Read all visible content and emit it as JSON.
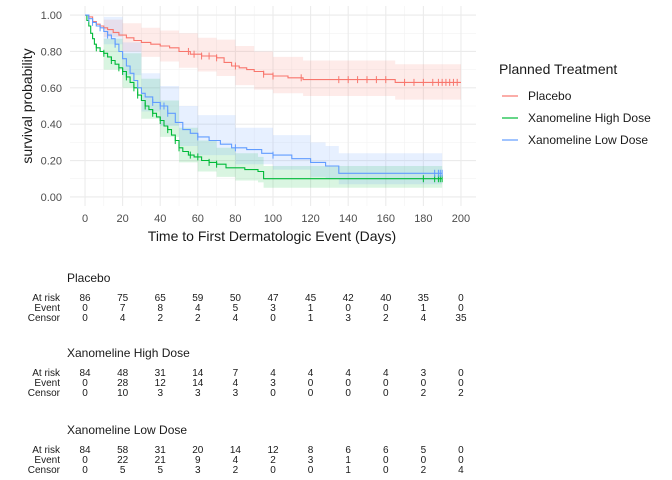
{
  "chart_data": {
    "type": "line",
    "title": "",
    "xlabel": "Time to First Dermatologic Event (Days)",
    "ylabel": "survival probability",
    "xlim": [
      -8,
      208
    ],
    "ylim": [
      -0.05,
      1.05
    ],
    "xticks": [
      0,
      20,
      40,
      60,
      80,
      100,
      120,
      140,
      160,
      180,
      200
    ],
    "yticks": [
      0.0,
      0.2,
      0.4,
      0.6,
      0.8,
      1.0
    ],
    "ytick_labels": [
      "0.00",
      "0.20",
      "0.40",
      "0.60",
      "0.80",
      "1.00"
    ],
    "grid": true,
    "legend": {
      "title": "Planned Treatment",
      "position": "right"
    },
    "series": [
      {
        "name": "Placebo",
        "color": "#F8766D",
        "steps": [
          [
            0,
            1.0
          ],
          [
            2,
            0.99
          ],
          [
            4,
            0.965
          ],
          [
            6,
            0.95
          ],
          [
            8,
            0.94
          ],
          [
            10,
            0.93
          ],
          [
            12,
            0.92
          ],
          [
            15,
            0.905
          ],
          [
            18,
            0.89
          ],
          [
            22,
            0.875
          ],
          [
            26,
            0.86
          ],
          [
            30,
            0.85
          ],
          [
            35,
            0.84
          ],
          [
            40,
            0.83
          ],
          [
            45,
            0.82
          ],
          [
            50,
            0.8
          ],
          [
            56,
            0.785
          ],
          [
            62,
            0.775
          ],
          [
            70,
            0.765
          ],
          [
            74,
            0.74
          ],
          [
            78,
            0.72
          ],
          [
            82,
            0.71
          ],
          [
            86,
            0.7
          ],
          [
            90,
            0.69
          ],
          [
            95,
            0.675
          ],
          [
            100,
            0.665
          ],
          [
            108,
            0.655
          ],
          [
            116,
            0.645
          ],
          [
            130,
            0.645
          ],
          [
            155,
            0.645
          ],
          [
            160,
            0.645
          ],
          [
            165,
            0.63
          ],
          [
            200,
            0.63
          ]
        ],
        "ci_upper": [
          [
            0,
            1.0
          ],
          [
            10,
            0.975
          ],
          [
            20,
            0.955
          ],
          [
            30,
            0.93
          ],
          [
            40,
            0.915
          ],
          [
            50,
            0.9
          ],
          [
            60,
            0.875
          ],
          [
            70,
            0.865
          ],
          [
            80,
            0.83
          ],
          [
            90,
            0.8
          ],
          [
            100,
            0.77
          ],
          [
            116,
            0.75
          ],
          [
            165,
            0.73
          ],
          [
            200,
            0.73
          ]
        ],
        "ci_lower": [
          [
            0,
            1.0
          ],
          [
            10,
            0.88
          ],
          [
            20,
            0.8
          ],
          [
            30,
            0.77
          ],
          [
            40,
            0.745
          ],
          [
            50,
            0.71
          ],
          [
            60,
            0.69
          ],
          [
            70,
            0.665
          ],
          [
            80,
            0.615
          ],
          [
            90,
            0.59
          ],
          [
            100,
            0.57
          ],
          [
            116,
            0.555
          ],
          [
            165,
            0.535
          ],
          [
            200,
            0.535
          ]
        ],
        "censor_times": [
          55,
          58,
          62,
          66,
          70,
          80,
          95,
          100,
          115,
          135,
          140,
          145,
          150,
          155,
          160,
          170,
          175,
          180,
          185,
          188,
          190,
          192,
          194,
          196,
          198
        ]
      },
      {
        "name": "Xanomeline High Dose",
        "color": "#00BA38",
        "steps": [
          [
            0,
            1.0
          ],
          [
            1,
            0.97
          ],
          [
            2,
            0.94
          ],
          [
            3,
            0.9
          ],
          [
            4,
            0.87
          ],
          [
            5,
            0.84
          ],
          [
            6,
            0.82
          ],
          [
            8,
            0.8
          ],
          [
            10,
            0.79
          ],
          [
            12,
            0.77
          ],
          [
            14,
            0.75
          ],
          [
            16,
            0.73
          ],
          [
            18,
            0.71
          ],
          [
            20,
            0.69
          ],
          [
            22,
            0.66
          ],
          [
            24,
            0.63
          ],
          [
            26,
            0.6
          ],
          [
            28,
            0.56
          ],
          [
            30,
            0.53
          ],
          [
            32,
            0.5
          ],
          [
            34,
            0.48
          ],
          [
            36,
            0.46
          ],
          [
            38,
            0.44
          ],
          [
            40,
            0.42
          ],
          [
            42,
            0.39
          ],
          [
            44,
            0.37
          ],
          [
            46,
            0.34
          ],
          [
            48,
            0.31
          ],
          [
            50,
            0.27
          ],
          [
            52,
            0.25
          ],
          [
            55,
            0.23
          ],
          [
            58,
            0.22
          ],
          [
            62,
            0.2
          ],
          [
            66,
            0.19
          ],
          [
            70,
            0.18
          ],
          [
            75,
            0.16
          ],
          [
            85,
            0.15
          ],
          [
            92,
            0.14
          ],
          [
            95,
            0.1
          ],
          [
            190,
            0.1
          ]
        ],
        "ci_upper": [
          [
            0,
            1.0
          ],
          [
            10,
            0.87
          ],
          [
            20,
            0.79
          ],
          [
            30,
            0.65
          ],
          [
            40,
            0.53
          ],
          [
            50,
            0.38
          ],
          [
            60,
            0.31
          ],
          [
            70,
            0.27
          ],
          [
            80,
            0.24
          ],
          [
            92,
            0.22
          ],
          [
            95,
            0.17
          ],
          [
            190,
            0.17
          ]
        ],
        "ci_lower": [
          [
            0,
            1.0
          ],
          [
            10,
            0.7
          ],
          [
            20,
            0.6
          ],
          [
            30,
            0.43
          ],
          [
            40,
            0.33
          ],
          [
            50,
            0.19
          ],
          [
            60,
            0.14
          ],
          [
            70,
            0.11
          ],
          [
            80,
            0.09
          ],
          [
            92,
            0.08
          ],
          [
            95,
            0.05
          ],
          [
            190,
            0.05
          ]
        ],
        "censor_times": [
          6,
          10,
          14,
          18,
          20,
          22,
          26,
          28,
          32,
          36,
          40,
          44,
          48,
          50,
          56,
          60,
          66,
          70,
          180,
          186,
          188,
          189,
          190
        ]
      },
      {
        "name": "Xanomeline Low Dose",
        "color": "#619CFF",
        "steps": [
          [
            0,
            1.0
          ],
          [
            2,
            0.98
          ],
          [
            4,
            0.96
          ],
          [
            6,
            0.94
          ],
          [
            8,
            0.93
          ],
          [
            10,
            0.91
          ],
          [
            12,
            0.89
          ],
          [
            14,
            0.87
          ],
          [
            16,
            0.84
          ],
          [
            18,
            0.8
          ],
          [
            20,
            0.76
          ],
          [
            22,
            0.72
          ],
          [
            24,
            0.68
          ],
          [
            26,
            0.64
          ],
          [
            28,
            0.6
          ],
          [
            30,
            0.57
          ],
          [
            32,
            0.55
          ],
          [
            36,
            0.52
          ],
          [
            40,
            0.5
          ],
          [
            44,
            0.46
          ],
          [
            48,
            0.41
          ],
          [
            52,
            0.37
          ],
          [
            56,
            0.35
          ],
          [
            60,
            0.33
          ],
          [
            66,
            0.31
          ],
          [
            72,
            0.29
          ],
          [
            78,
            0.27
          ],
          [
            86,
            0.26
          ],
          [
            94,
            0.24
          ],
          [
            100,
            0.23
          ],
          [
            110,
            0.21
          ],
          [
            120,
            0.19
          ],
          [
            128,
            0.17
          ],
          [
            135,
            0.13
          ],
          [
            190,
            0.13
          ]
        ],
        "ci_upper": [
          [
            0,
            1.0
          ],
          [
            10,
            0.99
          ],
          [
            20,
            0.85
          ],
          [
            30,
            0.68
          ],
          [
            40,
            0.61
          ],
          [
            50,
            0.5
          ],
          [
            60,
            0.45
          ],
          [
            80,
            0.38
          ],
          [
            100,
            0.34
          ],
          [
            120,
            0.3
          ],
          [
            128,
            0.28
          ],
          [
            135,
            0.24
          ],
          [
            190,
            0.24
          ]
        ],
        "ci_lower": [
          [
            0,
            1.0
          ],
          [
            10,
            0.84
          ],
          [
            20,
            0.67
          ],
          [
            30,
            0.47
          ],
          [
            40,
            0.39
          ],
          [
            50,
            0.28
          ],
          [
            60,
            0.23
          ],
          [
            80,
            0.18
          ],
          [
            100,
            0.15
          ],
          [
            120,
            0.11
          ],
          [
            128,
            0.1
          ],
          [
            135,
            0.07
          ],
          [
            190,
            0.07
          ]
        ],
        "censor_times": [
          2,
          4,
          8,
          12,
          16,
          36,
          40,
          42,
          44,
          60,
          80,
          100,
          186,
          188,
          189,
          190
        ]
      }
    ]
  },
  "risk_table": {
    "row_labels": [
      "At risk",
      "Event",
      "Censor"
    ],
    "times": [
      0,
      20,
      40,
      60,
      80,
      100,
      120,
      140,
      160,
      180,
      200
    ],
    "groups": [
      {
        "name": "Placebo",
        "at_risk": [
          "86",
          "75",
          "65",
          "59",
          "50",
          "47",
          "45",
          "42",
          "40",
          "35",
          "0"
        ],
        "event": [
          "0",
          "7",
          "8",
          "4",
          "5",
          "3",
          "1",
          "0",
          "0",
          "1",
          "0"
        ],
        "censor": [
          "0",
          "4",
          "2",
          "2",
          "4",
          "0",
          "1",
          "3",
          "2",
          "4",
          "35"
        ]
      },
      {
        "name": "Xanomeline High Dose",
        "at_risk": [
          "84",
          "48",
          "31",
          "14",
          "7",
          "4",
          "4",
          "4",
          "4",
          "3",
          "0"
        ],
        "event": [
          "0",
          "28",
          "12",
          "14",
          "4",
          "3",
          "0",
          "0",
          "0",
          "0",
          "0"
        ],
        "censor": [
          "0",
          "10",
          "3",
          "3",
          "3",
          "0",
          "0",
          "0",
          "0",
          "2",
          "2"
        ]
      },
      {
        "name": "Xanomeline Low Dose",
        "at_risk": [
          "84",
          "58",
          "31",
          "20",
          "14",
          "12",
          "8",
          "6",
          "6",
          "5",
          "0"
        ],
        "event": [
          "0",
          "22",
          "21",
          "9",
          "4",
          "2",
          "3",
          "1",
          "0",
          "0",
          "0"
        ],
        "censor": [
          "0",
          "5",
          "5",
          "3",
          "2",
          "0",
          "0",
          "1",
          "0",
          "2",
          "4"
        ]
      }
    ]
  }
}
